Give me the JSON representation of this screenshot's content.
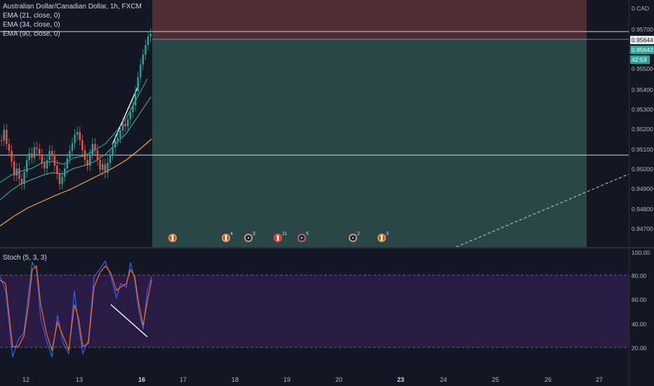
{
  "legend": {
    "symbol": "Australian Dollar/Canadian Dollar, 1h, FXCM",
    "ema21": "EMA (21, close, 0)",
    "ema34": "EMA (34, close, 0)",
    "ema90": "EMA (90, close, 0)"
  },
  "price_axis": {
    "currency": "0 CAD",
    "ticks": [
      "0.95700",
      "0.95600",
      "0.95500",
      "0.95400",
      "0.95300",
      "0.95200",
      "0.95100",
      "0.95000",
      "0.94900",
      "0.94800",
      "0.94700"
    ],
    "tag_bid": "0.95644",
    "tag_last": "0.95643",
    "countdown": "42:53"
  },
  "oscillator": {
    "label": "Stoch (5, 3, 3)",
    "ticks": [
      "100.00",
      "80.00",
      "60.00",
      "40.00",
      "20.00"
    ]
  },
  "time_axis": [
    "12",
    "13",
    "16",
    "17",
    "18",
    "19",
    "20",
    "23",
    "24",
    "25",
    "26",
    "27"
  ],
  "events": [
    {
      "icon": "ca-flag-icon",
      "count": ""
    },
    {
      "icon": "ca-flag-icon",
      "count": "4"
    },
    {
      "icon": "au-flag-icon",
      "count": "3"
    },
    {
      "icon": "ca-flag-icon",
      "count": "11"
    },
    {
      "icon": "au-flag-icon",
      "count": "5"
    },
    {
      "icon": "au-flag-icon",
      "count": "2"
    },
    {
      "icon": "ca-flag-icon",
      "count": "3"
    }
  ],
  "colors": {
    "background": "#131722",
    "bull": "#26a69a",
    "bear": "#ef5350",
    "stop_zone": "#5c3036",
    "target_zone": "#2e4b4b",
    "stoch_band": "#2a1b45",
    "stoch_k": "#2962ff",
    "stoch_d": "#ff6d00",
    "ema90": "#f7a838"
  }
}
